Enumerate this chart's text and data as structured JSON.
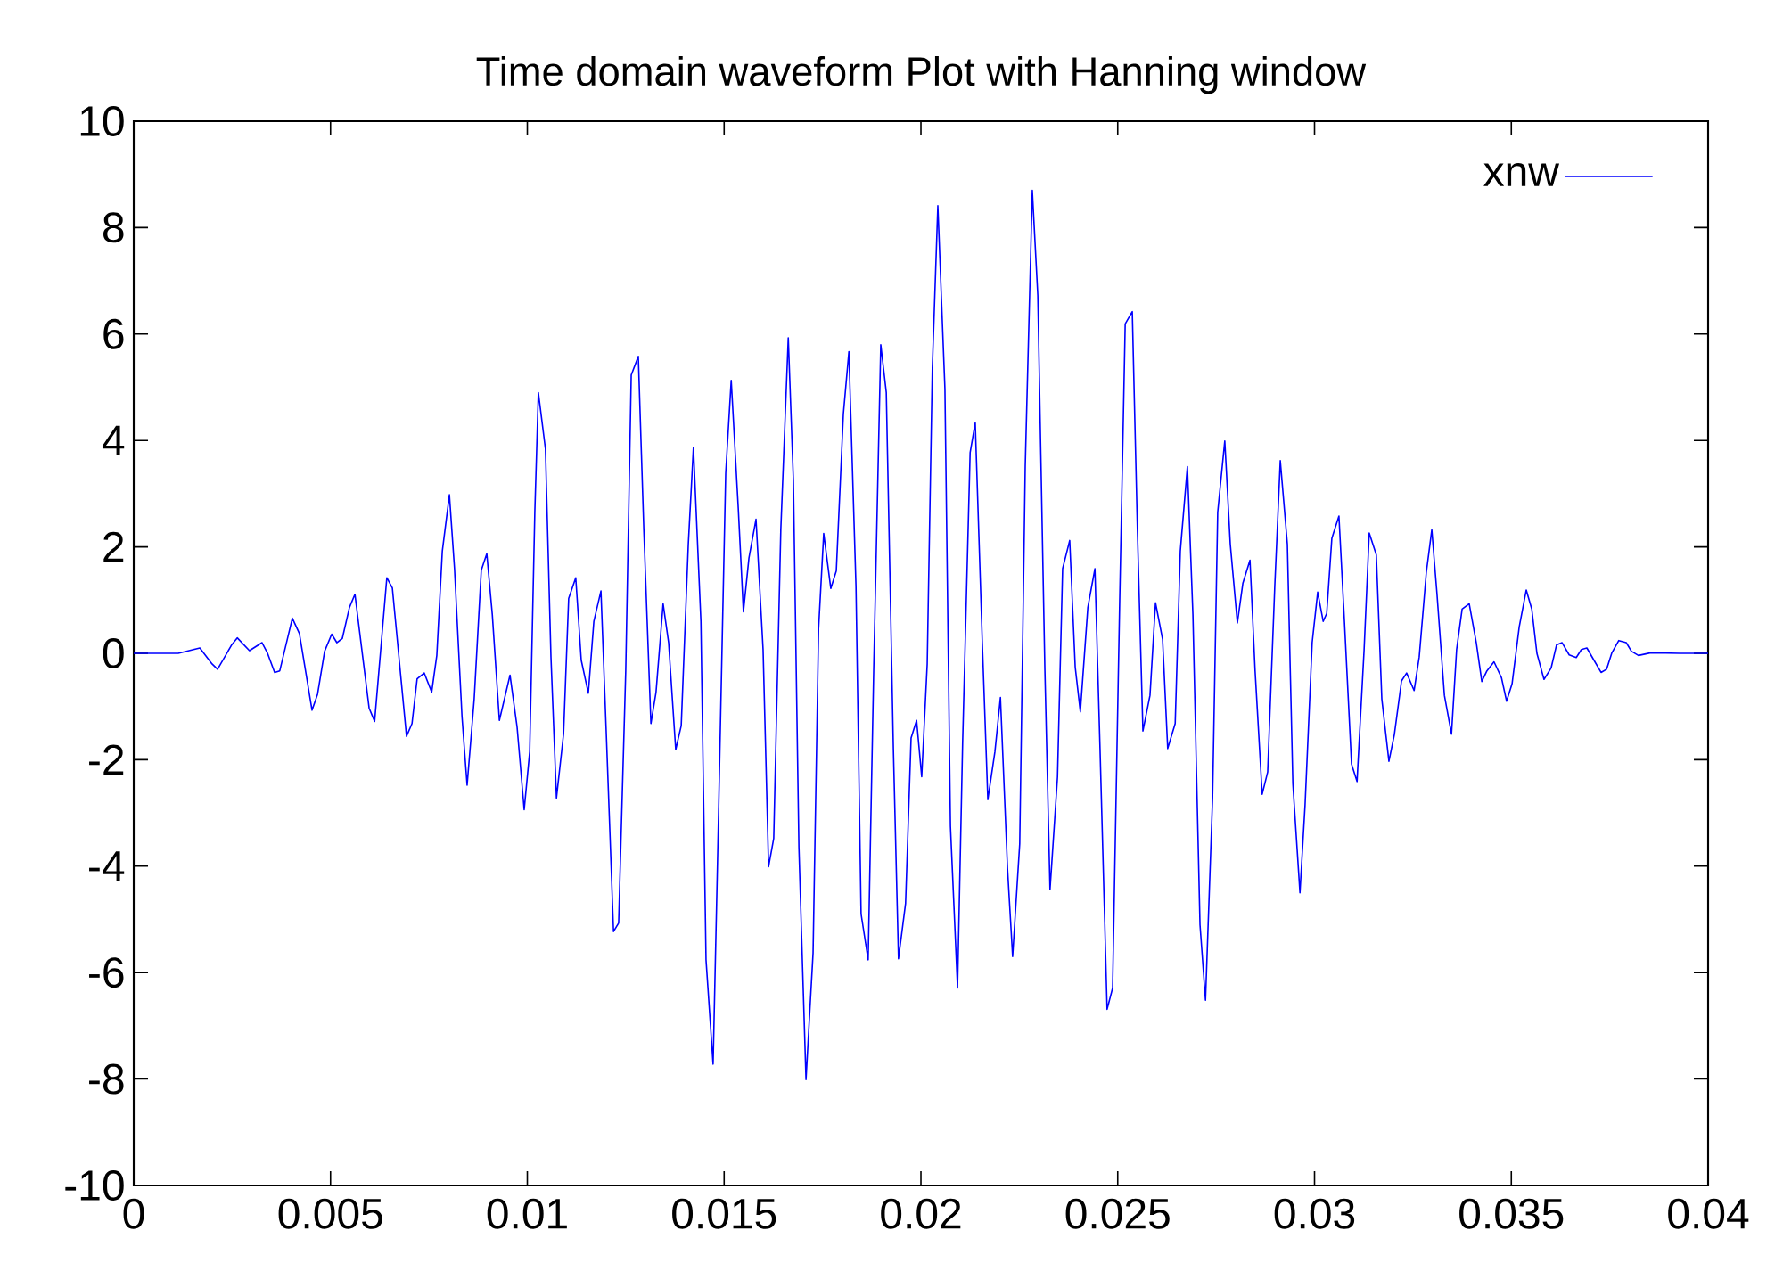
{
  "chart_data": {
    "type": "line",
    "title": "Time domain waveform Plot with Hanning window",
    "x": [
      0,
      0.00113,
      0.00168,
      0.00199,
      0.00213,
      0.00249,
      0.00263,
      0.00294,
      0.00326,
      0.0034,
      0.00358,
      0.00371,
      0.00403,
      0.00421,
      0.00453,
      0.00467,
      0.00485,
      0.00503,
      0.00516,
      0.0053,
      0.00548,
      0.00562,
      0.00598,
      0.00612,
      0.00643,
      0.00657,
      0.00693,
      0.00707,
      0.0072,
      0.00738,
      0.00757,
      0.0077,
      0.00784,
      0.00802,
      0.00815,
      0.00834,
      0.00847,
      0.00865,
      0.00883,
      0.00897,
      0.00911,
      0.00929,
      0.00956,
      0.00974,
      0.00992,
      0.01006,
      0.01019,
      0.01028,
      0.01046,
      0.0106,
      0.01074,
      0.01092,
      0.01105,
      0.01123,
      0.01137,
      0.01155,
      0.01169,
      0.01187,
      0.012,
      0.01219,
      0.01232,
      0.0125,
      0.01264,
      0.01282,
      0.01296,
      0.01314,
      0.01327,
      0.01345,
      0.01359,
      0.01377,
      0.01391,
      0.01409,
      0.01422,
      0.01441,
      0.01454,
      0.01472,
      0.01486,
      0.01504,
      0.01518,
      0.01536,
      0.01549,
      0.01563,
      0.01581,
      0.01599,
      0.01613,
      0.01626,
      0.01644,
      0.01663,
      0.01676,
      0.0169,
      0.01708,
      0.01726,
      0.0174,
      0.01753,
      0.01771,
      0.01785,
      0.01803,
      0.01817,
      0.01835,
      0.01848,
      0.01866,
      0.0188,
      0.01898,
      0.01912,
      0.0193,
      0.01943,
      0.01961,
      0.01975,
      0.01989,
      0.02002,
      0.02016,
      0.02029,
      0.02043,
      0.02061,
      0.02075,
      0.02093,
      0.02106,
      0.02125,
      0.02138,
      0.02156,
      0.0217,
      0.02188,
      0.02202,
      0.0222,
      0.02233,
      0.02251,
      0.02265,
      0.02283,
      0.02297,
      0.02315,
      0.02328,
      0.02347,
      0.0236,
      0.02378,
      0.02392,
      0.02405,
      0.02424,
      0.02442,
      0.02455,
      0.02473,
      0.02487,
      0.02505,
      0.02519,
      0.02537,
      0.0255,
      0.02564,
      0.02582,
      0.02596,
      0.02614,
      0.02627,
      0.02646,
      0.02659,
      0.02677,
      0.02691,
      0.02709,
      0.02723,
      0.02741,
      0.02754,
      0.02772,
      0.02786,
      0.02804,
      0.02818,
      0.02836,
      0.02849,
      0.02867,
      0.02881,
      0.02899,
      0.02913,
      0.02931,
      0.02945,
      0.02963,
      0.02976,
      0.02994,
      0.03008,
      0.03022,
      0.03031,
      0.03044,
      0.03062,
      0.03076,
      0.03094,
      0.03108,
      0.03126,
      0.03139,
      0.03157,
      0.03171,
      0.03189,
      0.03203,
      0.03221,
      0.03234,
      0.03253,
      0.03266,
      0.03284,
      0.03298,
      0.03311,
      0.0333,
      0.03348,
      0.03361,
      0.03375,
      0.03393,
      0.03411,
      0.03425,
      0.03438,
      0.03456,
      0.03475,
      0.03488,
      0.03502,
      0.0352,
      0.03538,
      0.03552,
      0.03565,
      0.03583,
      0.03601,
      0.03615,
      0.03629,
      0.03647,
      0.03665,
      0.03678,
      0.03692,
      0.0371,
      0.03728,
      0.03742,
      0.03755,
      0.03773,
      0.03792,
      0.03805,
      0.03823,
      0.03855,
      0.03928,
      0.04
    ],
    "series": [
      {
        "name": "xnw",
        "color": "#0000ff",
        "values": [
          0,
          0,
          0.1,
          -0.2,
          -0.3,
          0.16,
          0.29,
          0.05,
          0.2,
          0,
          -0.36,
          -0.33,
          0.66,
          0.37,
          -1.07,
          -0.77,
          0.04,
          0.36,
          0.2,
          0.28,
          0.86,
          1.11,
          -1.03,
          -1.28,
          1.42,
          1.23,
          -1.56,
          -1.32,
          -0.48,
          -0.37,
          -0.73,
          -0.04,
          1.92,
          2.98,
          1.59,
          -1.19,
          -2.48,
          -0.86,
          1.56,
          1.87,
          0.73,
          -1.26,
          -0.41,
          -1.39,
          -2.94,
          -1.85,
          2.65,
          4.9,
          3.84,
          -0.07,
          -2.72,
          -1.52,
          1.03,
          1.42,
          -0.13,
          -0.75,
          0.6,
          1.17,
          -1.39,
          -5.23,
          -5.07,
          -0.33,
          5.23,
          5.58,
          2.32,
          -1.32,
          -0.73,
          0.93,
          0.2,
          -1.81,
          -1.36,
          2.05,
          3.87,
          0.6,
          -5.76,
          -7.72,
          -2.98,
          3.38,
          5.13,
          2.72,
          0.78,
          1.79,
          2.52,
          0.07,
          -4.01,
          -3.48,
          2.32,
          5.93,
          3.25,
          -3.64,
          -8.01,
          -5.63,
          0.46,
          2.25,
          1.22,
          1.55,
          4.5,
          5.67,
          1.26,
          -4.9,
          -5.76,
          -0.33,
          5.8,
          4.9,
          -1.79,
          -5.74,
          -4.7,
          -1.59,
          -1.26,
          -2.32,
          -0.2,
          5.36,
          8.41,
          4.97,
          -3.25,
          -6.29,
          -1.66,
          3.77,
          4.33,
          0.2,
          -2.75,
          -1.85,
          -0.83,
          -4.04,
          -5.7,
          -3.58,
          3.51,
          8.7,
          6.72,
          -0.33,
          -4.44,
          -2.32,
          1.59,
          2.12,
          -0.26,
          -1.1,
          0.86,
          1.59,
          -1.79,
          -6.69,
          -6.29,
          0.99,
          6.19,
          6.42,
          2.32,
          -1.46,
          -0.79,
          0.95,
          0.26,
          -1.79,
          -1.32,
          1.92,
          3.51,
          0.73,
          -5.1,
          -6.52,
          -2.72,
          2.65,
          3.99,
          2.05,
          0.57,
          1.32,
          1.75,
          -0.33,
          -2.65,
          -2.23,
          1.26,
          3.62,
          2.05,
          -2.45,
          -4.5,
          -2.85,
          0.2,
          1.15,
          0.6,
          0.75,
          2.16,
          2.58,
          0.6,
          -2.08,
          -2.41,
          0.07,
          2.26,
          1.85,
          -0.86,
          -2.03,
          -1.52,
          -0.52,
          -0.37,
          -0.7,
          -0.07,
          1.52,
          2.32,
          1.13,
          -0.79,
          -1.52,
          0.07,
          0.83,
          0.93,
          0.2,
          -0.53,
          -0.33,
          -0.16,
          -0.46,
          -0.9,
          -0.57,
          0.49,
          1.19,
          0.83,
          0,
          -0.49,
          -0.28,
          0.16,
          0.2,
          -0.03,
          -0.08,
          0.07,
          0.1,
          -0.13,
          -0.36,
          -0.3,
          0,
          0.24,
          0.2,
          0.04,
          -0.04,
          0.01,
          0,
          0
        ]
      }
    ],
    "xlim": [
      0,
      0.04
    ],
    "ylim": [
      -10,
      10
    ],
    "xticks": [
      0,
      0.005,
      0.01,
      0.015,
      0.02,
      0.025,
      0.03,
      0.035,
      0.04
    ],
    "yticks": [
      -10,
      -8,
      -6,
      -4,
      -2,
      0,
      2,
      4,
      6,
      8,
      10
    ],
    "grid": false,
    "legend": "top right",
    "marker": "none",
    "line_style": "solid"
  }
}
